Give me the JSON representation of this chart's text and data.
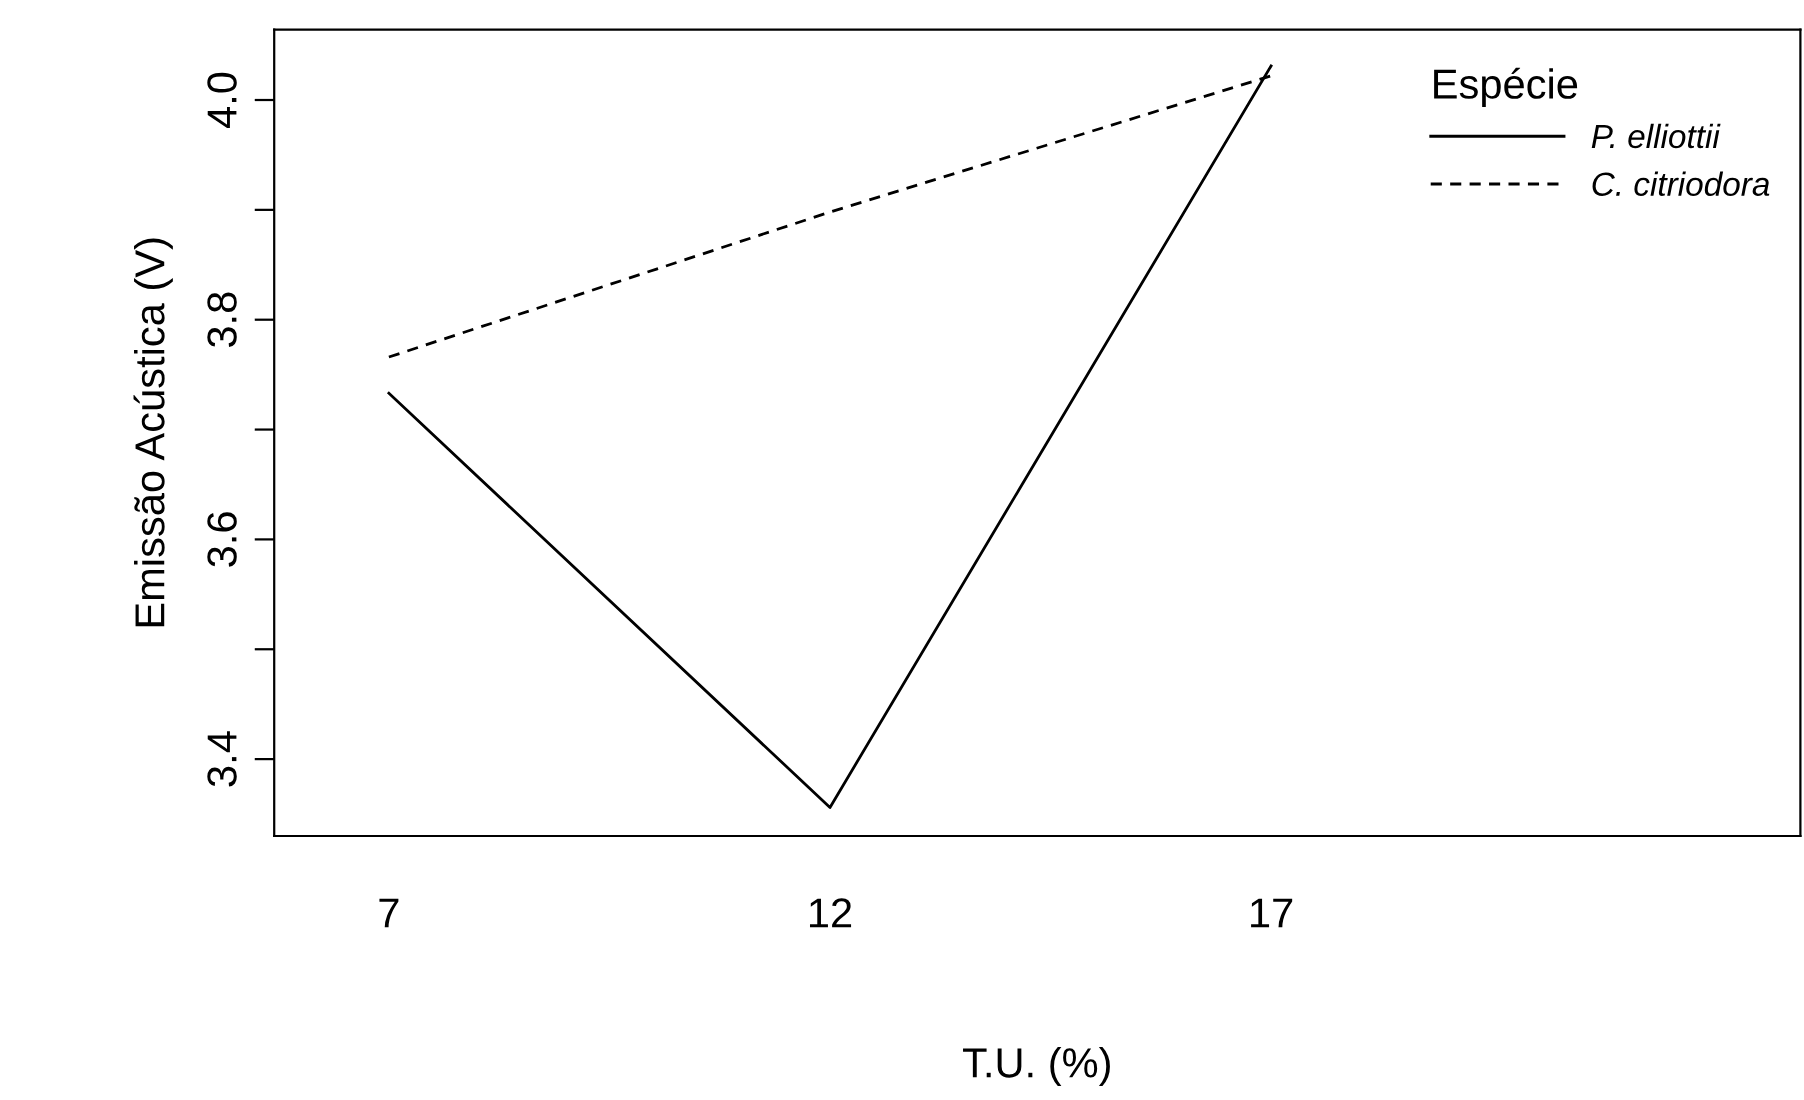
{
  "chart_data": {
    "type": "line",
    "xlabel": "T.U. (%)",
    "ylabel": "Emissão Acústica (V)",
    "legend_title": "Espécie",
    "x": [
      7,
      12,
      17
    ],
    "series": [
      {
        "name": "P. elliottii",
        "color": "#000000",
        "line_style": "solid",
        "values": [
          3.733,
          3.356,
          4.031
        ]
      },
      {
        "name": "C. citriodora",
        "color": "#000000",
        "line_style": "dashed",
        "values": [
          3.766,
          3.898,
          4.022
        ]
      }
    ],
    "xlim": [
      5.7,
      23.0
    ],
    "xticks": [
      7,
      12,
      17
    ],
    "ylim": [
      3.33,
      4.064
    ],
    "yticks": [
      3.4,
      {
        "value": 3.5,
        "label": null
      },
      3.6,
      {
        "value": 3.7,
        "label": null
      },
      3.8,
      {
        "value": 3.9,
        "label": null
      },
      {
        "value": 4.0,
        "label": "4.0"
      }
    ],
    "grid": false,
    "legend": "top right",
    "marker": "none"
  }
}
